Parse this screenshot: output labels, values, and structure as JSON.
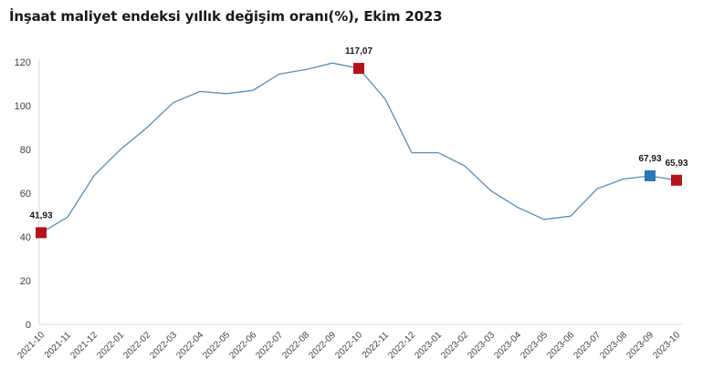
{
  "chart_data": {
    "type": "line",
    "title": "İnşaat maliyet endeksi yıllık değişim oranı(%), Ekim 2023",
    "xlabel": "",
    "ylabel": "",
    "ylim": [
      0,
      120
    ],
    "yticks": [
      0,
      20,
      40,
      60,
      80,
      100,
      120
    ],
    "grid": false,
    "legend": "none",
    "categories": [
      "2021-10",
      "2021-11",
      "2021-12",
      "2022-01",
      "2022-02",
      "2022-03",
      "2022-04",
      "2022-05",
      "2022-06",
      "2022-07",
      "2022-08",
      "2022-09",
      "2022-10",
      "2022-11",
      "2022-12",
      "2023-01",
      "2023-02",
      "2023-03",
      "2023-04",
      "2023-05",
      "2023-06",
      "2023-07",
      "2023-08",
      "2023-09",
      "2023-10"
    ],
    "series": [
      {
        "name": "Yıllık değişim oranı (%)",
        "color": "#5b8db8",
        "values": [
          41.93,
          49.0,
          68.0,
          80.0,
          90.0,
          101.5,
          106.5,
          105.5,
          107.0,
          114.5,
          116.5,
          119.5,
          117.07,
          103.0,
          78.5,
          78.5,
          72.5,
          61.0,
          53.5,
          48.0,
          49.5,
          62.0,
          66.5,
          67.93,
          65.93
        ]
      }
    ],
    "annotations": [
      {
        "category": "2021-10",
        "label": "41,93",
        "marker_color": "#b5121b"
      },
      {
        "category": "2022-10",
        "label": "117,07",
        "marker_color": "#b5121b"
      },
      {
        "category": "2023-09",
        "label": "67,93",
        "marker_color": "#2e75b6"
      },
      {
        "category": "2023-10",
        "label": "65,93",
        "marker_color": "#b5121b"
      }
    ]
  },
  "header": {
    "title": "İnşaat maliyet endeksi yıllık değişim oranı(%), Ekim 2023"
  }
}
